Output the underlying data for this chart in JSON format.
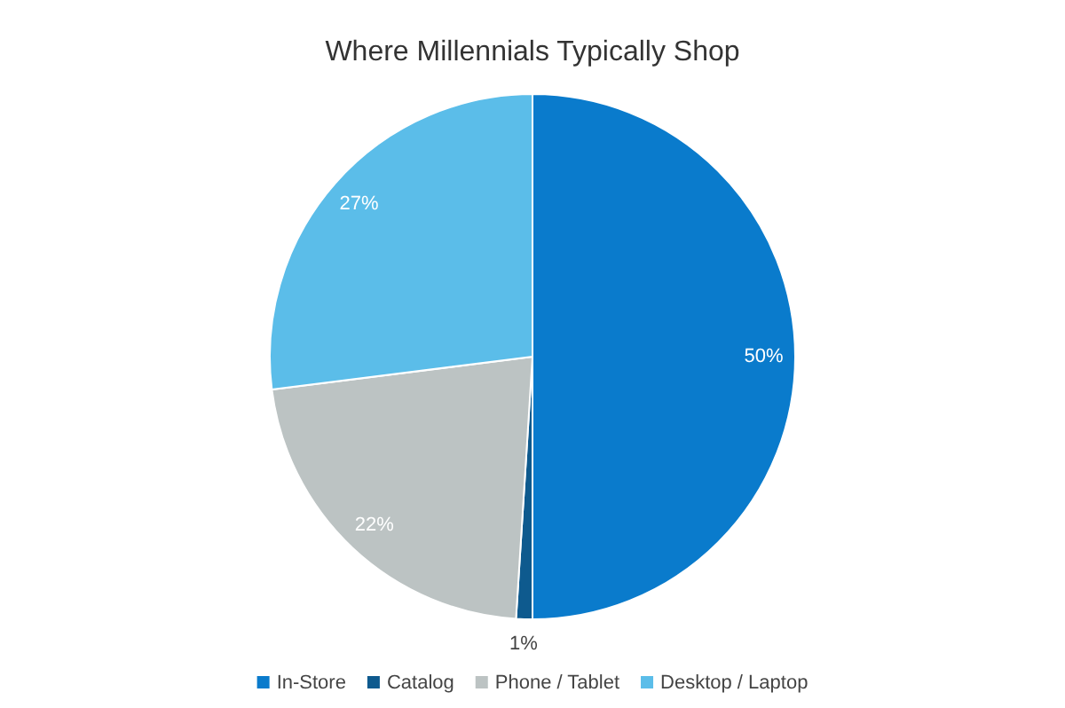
{
  "chart_data": {
    "type": "pie",
    "title": "Where Millennials Typically Shop",
    "categories": [
      "In-Store",
      "Catalog",
      "Phone / Tablet",
      "Desktop / Laptop"
    ],
    "values": [
      50,
      1,
      22,
      27
    ],
    "colors": [
      "#0a7bcc",
      "#0e5a8e",
      "#bcc3c3",
      "#5bbde9"
    ],
    "value_labels": [
      "50%",
      "1%",
      "22%",
      "27%"
    ],
    "legend": "bottom"
  }
}
